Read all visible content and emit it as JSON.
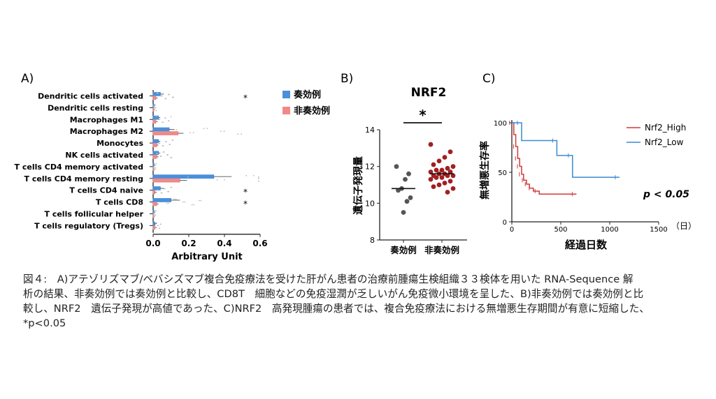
{
  "panel_labels": {
    "a": "A)",
    "b": "B)",
    "c": "C)"
  },
  "colors": {
    "responder": "#4a8fdb",
    "nonresponder": "#ef8a8a",
    "b_responder": "#555555",
    "b_nonresponder": "#a02020",
    "high": "#d23a3a",
    "low": "#3a8ad2"
  },
  "chart_data": [
    {
      "type": "bar",
      "orientation": "horizontal",
      "title": "",
      "xlabel": "Arbitrary Unit",
      "xlim": [
        0.0,
        0.6
      ],
      "xticks": [
        "0.0",
        "0.2",
        "0.4",
        "0.6"
      ],
      "categories": [
        "Dendritic cells activated",
        "Dendritic cells resting",
        "Macrophages M1",
        "Macrophages M2",
        "Monocytes",
        "NK cells activated",
        "T cells CD4 memory activated",
        "T cells CD4 memory resting",
        "T cells CD4 naive",
        "T cells CD8",
        "T cells follicular helper",
        "T cells regulatory (Tregs)"
      ],
      "series": [
        {
          "name": "奏効例",
          "values": [
            0.04,
            0.005,
            0.03,
            0.09,
            0.03,
            0.03,
            0.005,
            0.34,
            0.04,
            0.1,
            0.005,
            0.01
          ],
          "errors": [
            0.02,
            0.005,
            0.01,
            0.03,
            0.01,
            0.01,
            0.003,
            0.1,
            0.02,
            0.05,
            0.003,
            0.01
          ]
        },
        {
          "name": "非奏効例",
          "values": [
            0.015,
            0.003,
            0.015,
            0.14,
            0.02,
            0.02,
            0.003,
            0.15,
            0.01,
            0.02,
            0.003,
            0.01
          ],
          "errors": [
            0.01,
            0.003,
            0.01,
            0.03,
            0.01,
            0.01,
            0.002,
            0.04,
            0.01,
            0.01,
            0.002,
            0.01
          ]
        }
      ],
      "significance": [
        "*",
        "",
        "",
        "",
        "",
        "",
        "",
        "",
        "*",
        "*",
        "",
        ""
      ],
      "legend": [
        "奏効例",
        "非奏効例"
      ],
      "legend_position": "top-right"
    },
    {
      "type": "scatter",
      "title": "NRF2",
      "ylabel": "遺伝子発現量",
      "ylim": [
        8,
        14
      ],
      "yticks": [
        "8",
        "10",
        "12",
        "14"
      ],
      "categories": [
        "奏効例",
        "非奏効例"
      ],
      "series": [
        {
          "name": "奏効例",
          "values": [
            12.0,
            11.6,
            11.3,
            10.8,
            10.7,
            10.3,
            10.1,
            9.5
          ],
          "median": 10.8
        },
        {
          "name": "非奏効例",
          "values": [
            13.2,
            12.8,
            12.5,
            12.3,
            12.1,
            12.0,
            11.9,
            11.8,
            11.8,
            11.7,
            11.7,
            11.6,
            11.6,
            11.5,
            11.5,
            11.5,
            11.4,
            11.4,
            11.3,
            11.2,
            11.1,
            11.0,
            10.9,
            10.8,
            10.6
          ],
          "median": 11.6
        }
      ],
      "significance": "*"
    },
    {
      "type": "line",
      "subtype": "kaplan-meier",
      "title": "",
      "xlabel": "経過日数",
      "ylabel": "無増悪生存率",
      "xlim": [
        0,
        1500
      ],
      "ylim": [
        0,
        100
      ],
      "xticks": [
        "0",
        "500",
        "1000",
        "1500"
      ],
      "yticks": [
        "0",
        "50",
        "100"
      ],
      "x_unit": "（日）",
      "series": [
        {
          "name": "Nrf2_High",
          "x": [
            0,
            20,
            40,
            60,
            80,
            100,
            120,
            150,
            180,
            220,
            280,
            660
          ],
          "y": [
            100,
            88,
            76,
            64,
            56,
            48,
            42,
            38,
            34,
            31,
            28,
            28
          ]
        },
        {
          "name": "Nrf2_Low",
          "x": [
            0,
            100,
            460,
            620,
            1100
          ],
          "y": [
            100,
            82,
            67,
            45,
            45
          ]
        }
      ],
      "legend_position": "top-right",
      "annotation": "p < 0.05"
    }
  ],
  "caption": {
    "line1": "図４:　A)アテゾリズマブ/ベバシズマブ複合免疫療法を受けた肝がん患者の治療前腫瘍生検組織３３検体を用いた RNA-Sequence 解",
    "line2": "析の結果、非奏効例では奏効例と比較し、CD8T　細胞などの免疫湿潤が乏しいがん免疫微小環境を呈した、B)非奏効例では奏効例と比",
    "line3": "較し、NRF2　遺伝子発現が高値であった、C)NRF2　高発現腫瘍の患者では、複合免疫療法における無増悪生存期間が有意に短縮した、",
    "line4": "*p<0.05"
  }
}
